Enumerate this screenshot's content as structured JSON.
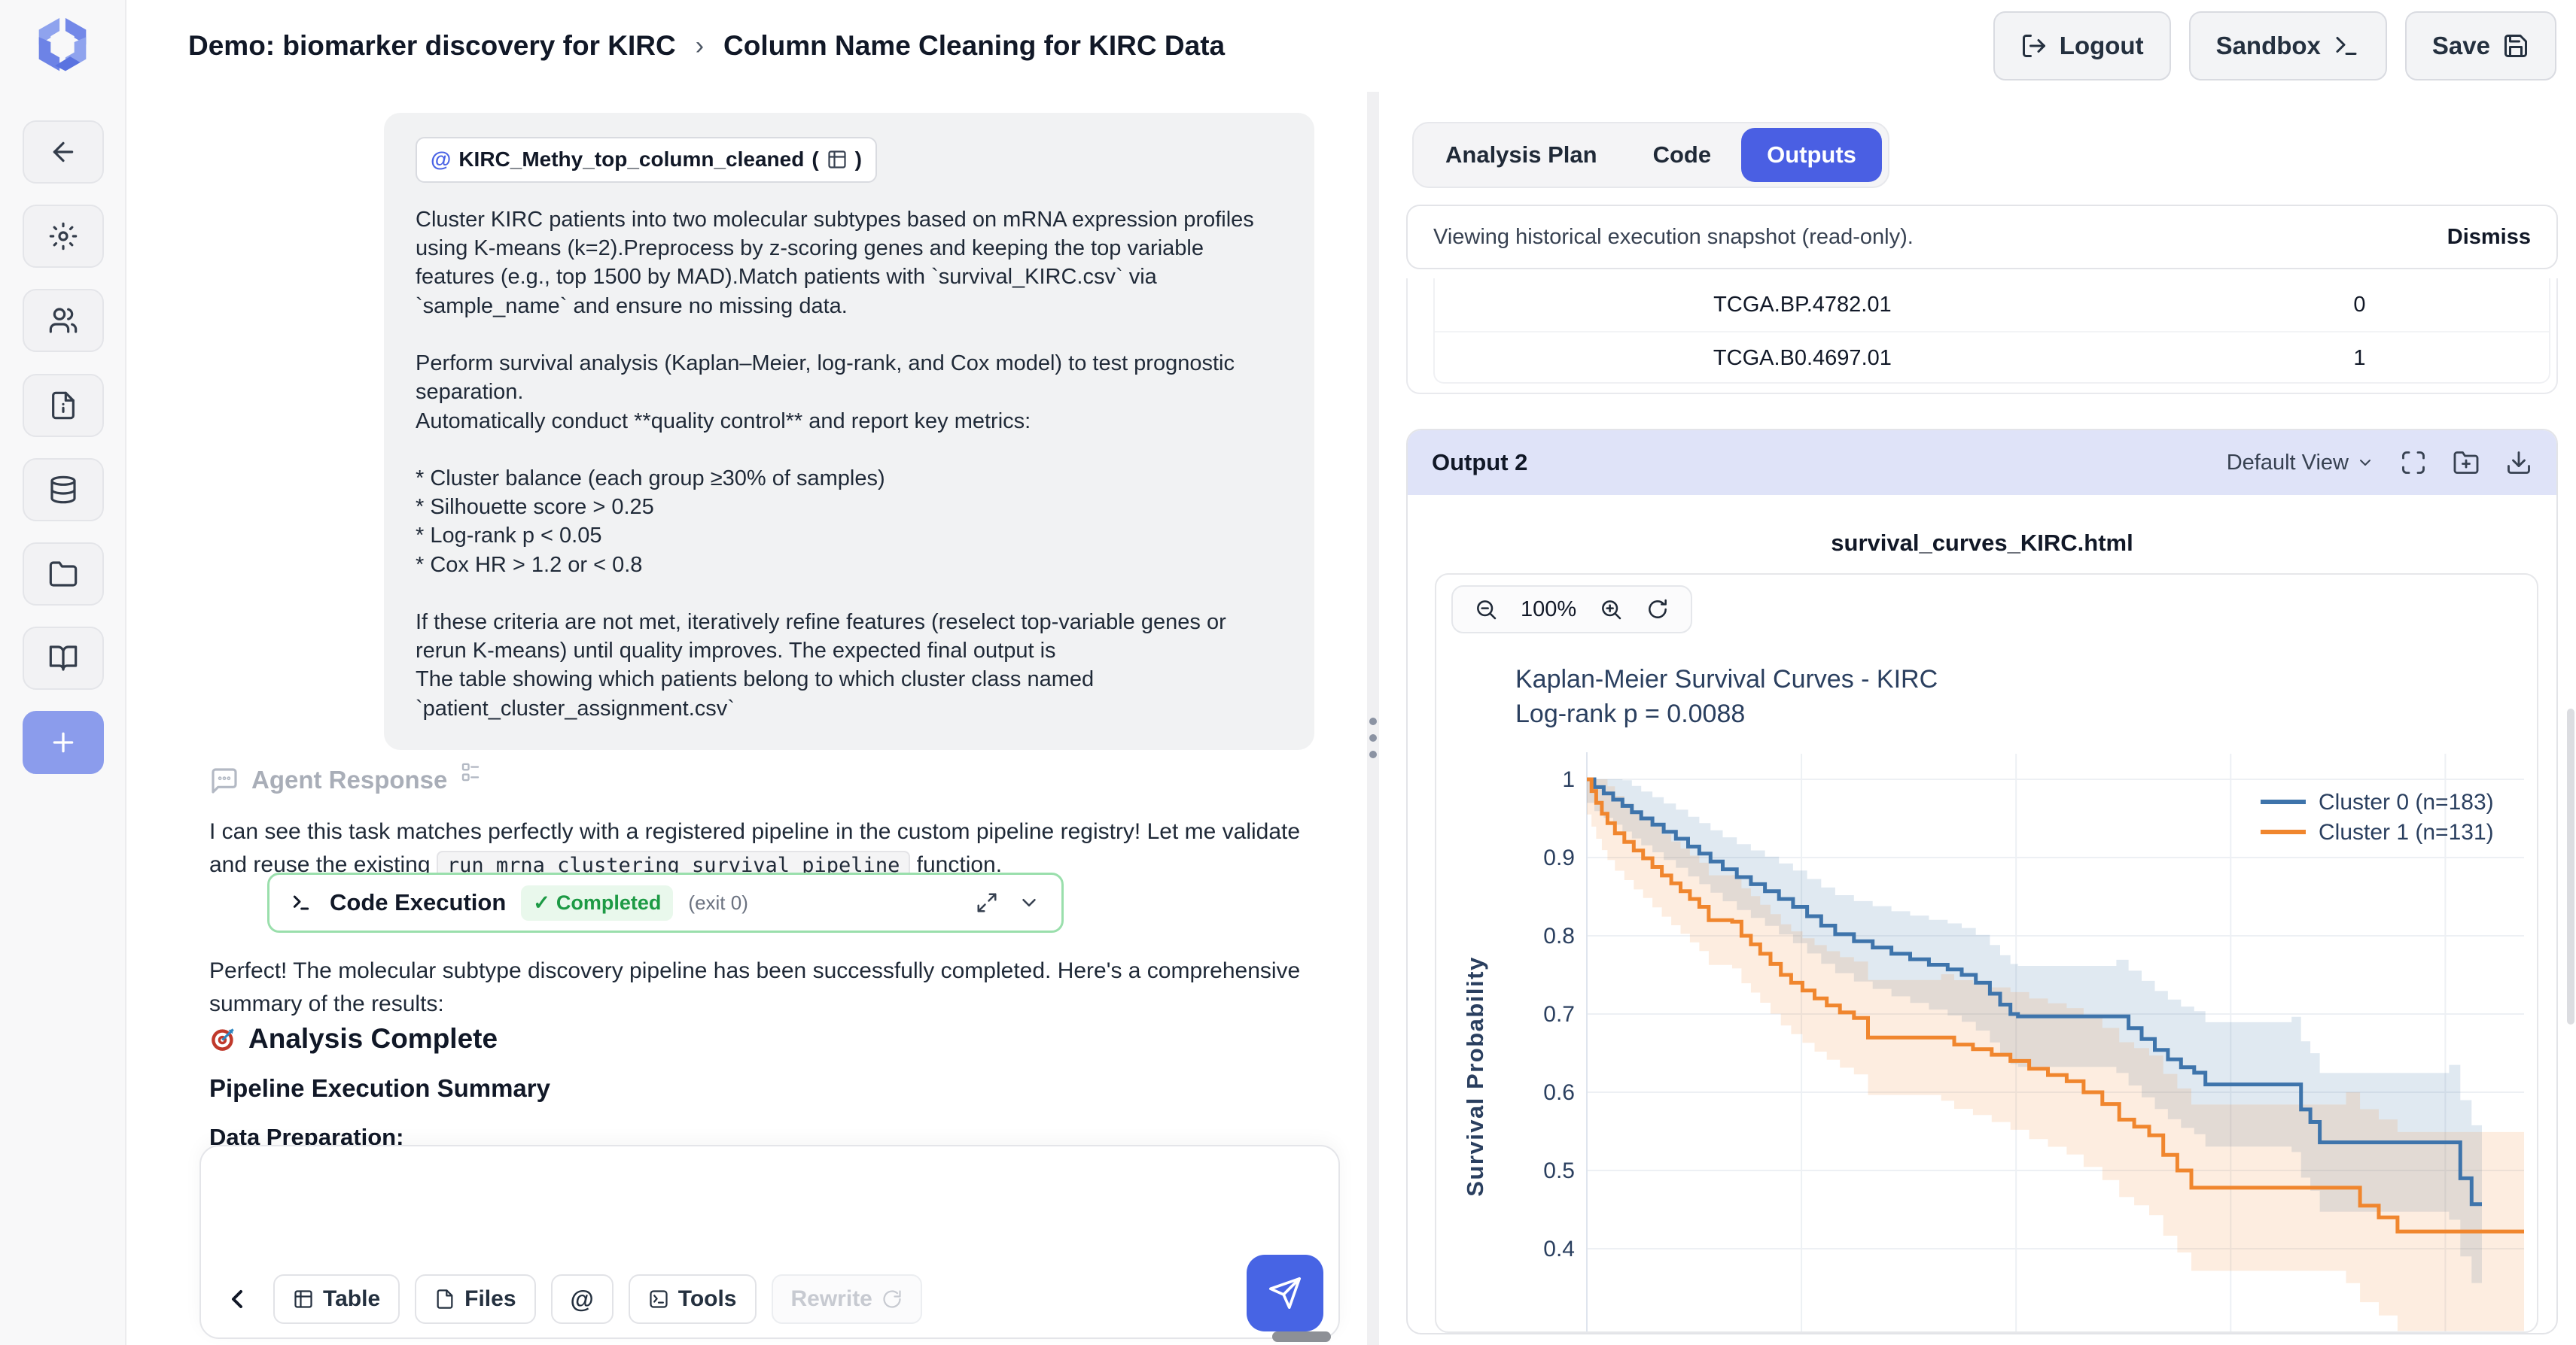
{
  "header": {
    "breadcrumb_primary": "Demo: biomarker discovery for KIRC",
    "breadcrumb_separator": "›",
    "breadcrumb_secondary": "Column Name Cleaning for KIRC Data",
    "logout_label": "Logout",
    "sandbox_label": "Sandbox",
    "save_label": "Save"
  },
  "sidebar": {
    "icon_names": [
      "app-logo",
      "back-icon",
      "settings-gear-icon",
      "users-icon",
      "file-info-icon",
      "database-icon",
      "folder-icon",
      "book-icon",
      "plus-icon",
      "expand-chevron-icon"
    ]
  },
  "chat": {
    "user_message": {
      "chip": {
        "at": "@",
        "label": "KIRC_Methy_top_column_cleaned",
        "paren_open": "(",
        "paren_close": ")"
      },
      "paragraph1": "Cluster KIRC patients into two molecular subtypes based on mRNA expression profiles using K-means (k=2).Preprocess by z-scoring genes and keeping the top variable features (e.g., top 1500 by MAD).Match patients with `survival_KIRC.csv` via `sample_name` and ensure no missing data.",
      "paragraph2": "Perform survival analysis (Kaplan–Meier, log-rank, and Cox model) to test prognostic separation.",
      "paragraph3": "Automatically conduct **quality control** and report key metrics:",
      "bullets": [
        "* Cluster balance (each group ≥30% of samples)",
        "* Silhouette score > 0.25",
        "* Log-rank p < 0.05",
        "* Cox HR > 1.2 or < 0.8"
      ],
      "closing1": "If these criteria are not met, iteratively refine features (reselect top-variable genes or rerun K-means) until quality improves. The expected final output is",
      "closing2": "The table showing which patients belong to which cluster class named",
      "closing3": "`patient_cluster_assignment.csv`"
    },
    "agent": {
      "label": "Agent Response",
      "response_before": "I can see this task matches perfectly with a registered pipeline in the custom pipeline registry! Let me validate and reuse the existing ",
      "response_code": "run_mrna_clustering_survival_pipeline",
      "response_after": " function.",
      "code_execution": {
        "title": "Code Execution",
        "status_check": "✓",
        "status": "Completed",
        "exit": "(exit 0)"
      },
      "summary_paragraph": "Perfect! The molecular subtype discovery pipeline has been successfully completed. Here's a comprehensive summary of the results:",
      "analysis_complete_heading": "Analysis Complete",
      "pipeline_summary_heading": "Pipeline Execution Summary",
      "partial_heading": "Data Preparation:"
    },
    "composer": {
      "input_value": "",
      "table_button": "Table",
      "files_button": "Files",
      "at_button": "@",
      "tools_button": "Tools",
      "rewrite_button": "Rewrite"
    }
  },
  "right_panel": {
    "tabs": {
      "analysis_plan": "Analysis Plan",
      "code": "Code",
      "outputs": "Outputs"
    },
    "notice": {
      "text": "Viewing historical execution snapshot (read-only).",
      "dismiss": "Dismiss"
    },
    "table": {
      "rows": [
        [
          "TCGA.BP.4782.01",
          "0"
        ],
        [
          "TCGA.B0.4697.01",
          "1"
        ]
      ]
    },
    "output": {
      "title": "Output 2",
      "view_label": "Default View",
      "filename": "survival_curves_KIRC.html",
      "zoom_level": "100%"
    }
  },
  "chart_data": {
    "type": "line",
    "subtype": "kaplan-meier-step-curves-with-ci-bands",
    "title": "Kaplan-Meier Survival Curves - KIRC",
    "subtitle": "Log-rank p = 0.0088",
    "xlabel": "",
    "ylabel": "Survival Probability",
    "x_tick_labels_visible": false,
    "x_range_normalized": [
      0,
      1
    ],
    "ylim_visible": [
      0.29,
      1.0
    ],
    "grid": true,
    "legend_position": "top-right",
    "yticks": [
      1,
      0.9,
      0.8,
      0.7,
      0.6,
      0.5,
      0.4
    ],
    "ytick_labels": [
      "1",
      "0.9",
      "0.8",
      "0.7",
      "0.6",
      "0.5",
      "0.4"
    ],
    "x_gridlines": [
      0.229,
      0.458,
      0.687,
      0.916
    ],
    "series": [
      {
        "name": "Cluster 0 (n=183)",
        "n": 183,
        "color": "#3e74ab",
        "band_color": "rgba(62,116,171,0.16)",
        "ci": [
          0.03,
          0.075
        ],
        "steps": [
          [
            0,
            1.0
          ],
          [
            0.008,
            0.99
          ],
          [
            0.018,
            0.982
          ],
          [
            0.028,
            0.974
          ],
          [
            0.038,
            0.966
          ],
          [
            0.048,
            0.958
          ],
          [
            0.058,
            0.95
          ],
          [
            0.07,
            0.942
          ],
          [
            0.082,
            0.933
          ],
          [
            0.095,
            0.924
          ],
          [
            0.108,
            0.914
          ],
          [
            0.12,
            0.905
          ],
          [
            0.132,
            0.895
          ],
          [
            0.145,
            0.885
          ],
          [
            0.16,
            0.875
          ],
          [
            0.175,
            0.866
          ],
          [
            0.19,
            0.857
          ],
          [
            0.205,
            0.847
          ],
          [
            0.22,
            0.837
          ],
          [
            0.235,
            0.825
          ],
          [
            0.25,
            0.813
          ],
          [
            0.265,
            0.802
          ],
          [
            0.285,
            0.793
          ],
          [
            0.305,
            0.785
          ],
          [
            0.325,
            0.777
          ],
          [
            0.345,
            0.77
          ],
          [
            0.365,
            0.763
          ],
          [
            0.385,
            0.757
          ],
          [
            0.4,
            0.75
          ],
          [
            0.415,
            0.74
          ],
          [
            0.43,
            0.726
          ],
          [
            0.441,
            0.712
          ],
          [
            0.452,
            0.7
          ],
          [
            0.46,
            0.697
          ],
          [
            0.565,
            0.697
          ],
          [
            0.578,
            0.682
          ],
          [
            0.592,
            0.668
          ],
          [
            0.606,
            0.654
          ],
          [
            0.62,
            0.642
          ],
          [
            0.634,
            0.632
          ],
          [
            0.648,
            0.625
          ],
          [
            0.66,
            0.61
          ],
          [
            0.752,
            0.61
          ],
          [
            0.762,
            0.578
          ],
          [
            0.772,
            0.562
          ],
          [
            0.782,
            0.536
          ],
          [
            0.92,
            0.536
          ],
          [
            0.932,
            0.49
          ],
          [
            0.944,
            0.457
          ],
          [
            0.955,
            0.457
          ]
        ]
      },
      {
        "name": "Cluster 1 (n=131)",
        "n": 131,
        "color": "#f0862e",
        "band_color": "rgba(240,134,46,0.15)",
        "ci": [
          0.045,
          0.095
        ],
        "steps": [
          [
            0,
            1.0
          ],
          [
            0.005,
            0.985
          ],
          [
            0.01,
            0.97
          ],
          [
            0.016,
            0.956
          ],
          [
            0.022,
            0.944
          ],
          [
            0.03,
            0.931
          ],
          [
            0.04,
            0.92
          ],
          [
            0.05,
            0.909
          ],
          [
            0.06,
            0.899
          ],
          [
            0.07,
            0.888
          ],
          [
            0.08,
            0.877
          ],
          [
            0.09,
            0.867
          ],
          [
            0.1,
            0.857
          ],
          [
            0.11,
            0.847
          ],
          [
            0.12,
            0.837
          ],
          [
            0.13,
            0.82
          ],
          [
            0.155,
            0.818
          ],
          [
            0.165,
            0.8
          ],
          [
            0.175,
            0.789
          ],
          [
            0.185,
            0.777
          ],
          [
            0.196,
            0.764
          ],
          [
            0.207,
            0.75
          ],
          [
            0.218,
            0.74
          ],
          [
            0.23,
            0.73
          ],
          [
            0.243,
            0.72
          ],
          [
            0.256,
            0.711
          ],
          [
            0.27,
            0.702
          ],
          [
            0.285,
            0.695
          ],
          [
            0.3,
            0.67
          ],
          [
            0.378,
            0.67
          ],
          [
            0.392,
            0.661
          ],
          [
            0.412,
            0.655
          ],
          [
            0.432,
            0.648
          ],
          [
            0.452,
            0.64
          ],
          [
            0.472,
            0.63
          ],
          [
            0.492,
            0.622
          ],
          [
            0.512,
            0.614
          ],
          [
            0.53,
            0.6
          ],
          [
            0.55,
            0.585
          ],
          [
            0.568,
            0.565
          ],
          [
            0.584,
            0.556
          ],
          [
            0.6,
            0.545
          ],
          [
            0.615,
            0.52
          ],
          [
            0.63,
            0.5
          ],
          [
            0.645,
            0.478
          ],
          [
            0.81,
            0.478
          ],
          [
            0.825,
            0.455
          ],
          [
            0.845,
            0.44
          ],
          [
            0.865,
            0.422
          ],
          [
            1.0,
            0.422
          ]
        ]
      }
    ]
  },
  "colors": {
    "accent_blue": "#4a5fe3",
    "send_blue": "#4764e4",
    "output_header_bg": "#dfe3f8",
    "success_green": "#1d9a45",
    "success_border": "#9adfac",
    "cluster0_blue": "#3e74ab",
    "cluster1_orange": "#f0862e",
    "axis_text": "#2a3f5f"
  }
}
